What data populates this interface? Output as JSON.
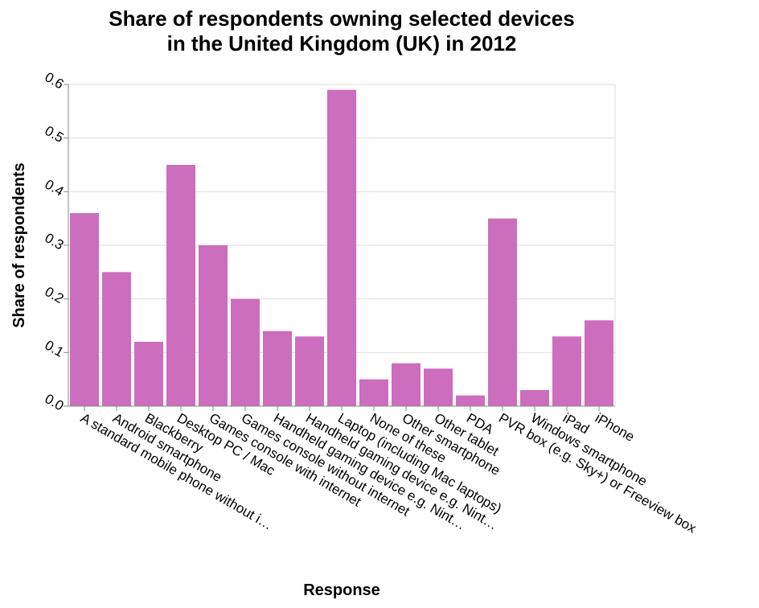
{
  "chart_data": {
    "type": "bar",
    "title_lines": [
      "Share of respondents owning selected devices",
      "in the United Kingdom (UK) in 2012"
    ],
    "xlabel": "Response",
    "ylabel": "Share of respondents",
    "ylim": [
      0,
      0.6
    ],
    "yticks": [
      "0.0",
      "0.1",
      "0.2",
      "0.3",
      "0.4",
      "0.5",
      "0.6"
    ],
    "grid": true,
    "bar_color": "#cc6dbe",
    "categories": [
      "A standard mobile phone without i…",
      "Android smartphone",
      "Blackberry",
      "Desktop PC / Mac",
      "Games console with internet",
      "Games console without internet",
      "Handheld gaming device e.g. Nint…",
      "Handheld gaming device e.g. Nint…",
      "Laptop (including Mac laptops)",
      "None of these",
      "Other smartphone",
      "Other tablet",
      "PDA",
      "PVR box (e.g. Sky+) or Freeview box",
      "Windows smartphone",
      "iPad",
      "iPhone"
    ],
    "values": [
      0.36,
      0.25,
      0.12,
      0.45,
      0.3,
      0.2,
      0.14,
      0.13,
      0.59,
      0.05,
      0.08,
      0.07,
      0.02,
      0.35,
      0.03,
      0.13,
      0.16
    ]
  }
}
